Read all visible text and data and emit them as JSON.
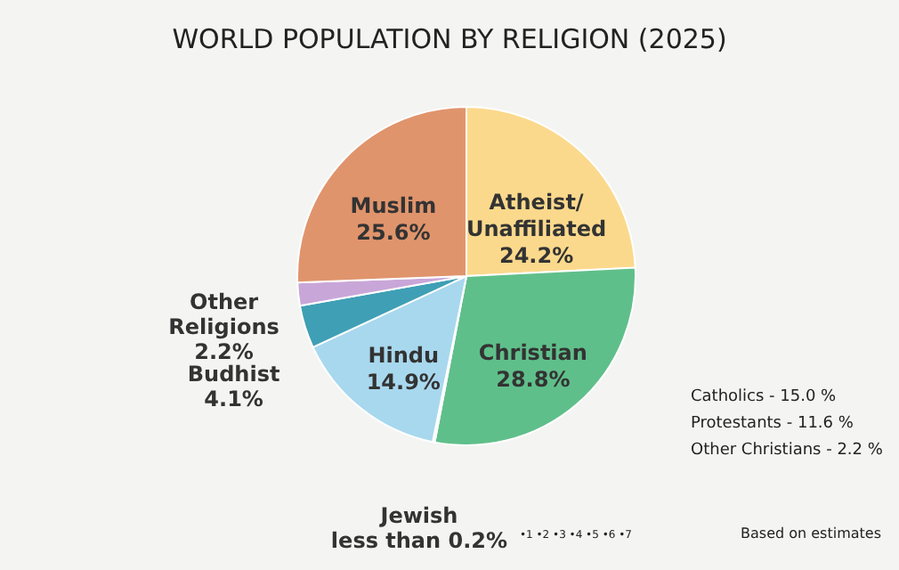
{
  "chart_data": {
    "type": "pie",
    "title": "WORLD POPULATION BY RELIGION (2025)",
    "categories": [
      "Atheist/Unaffiliated",
      "Christian",
      "Jewish",
      "Hindu",
      "Budhist",
      "Other Religions",
      "Muslim"
    ],
    "values": [
      24.2,
      28.8,
      0.2,
      14.9,
      4.1,
      2.2,
      25.6
    ],
    "value_labels": [
      "24.2%",
      "28.8%",
      "less than 0.2%",
      "14.9%",
      "4.1%",
      "2.2%",
      "25.6%"
    ],
    "colors": [
      "#fbd98c",
      "#5fbf8a",
      "#e8e8e8",
      "#a8d8ee",
      "#3f9fb5",
      "#c9a6d8",
      "#e0946c"
    ],
    "annotations": [
      "Catholics - 15.0 %",
      "Protestants - 11.6 %",
      "Other Christians - 2.2 %",
      "Based on estimates",
      "•1 •2 •3 •4 •5 •6 •7"
    ]
  }
}
